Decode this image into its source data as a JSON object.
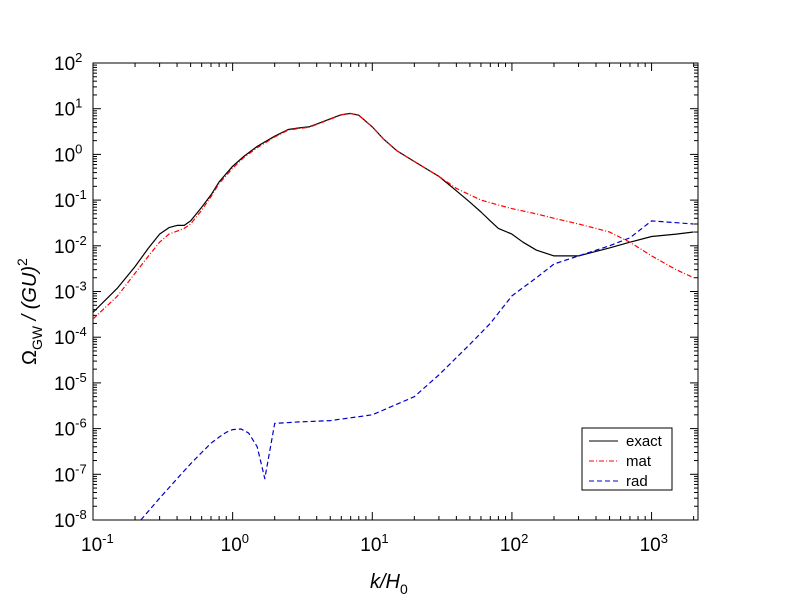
{
  "chart_data": {
    "type": "line",
    "xscale": "log",
    "yscale": "log",
    "xlim": [
      0.1,
      2150
    ],
    "ylim": [
      1e-08,
      100
    ],
    "grid": false,
    "legend_position": "bottom-right",
    "xlabel": {
      "main": "k/H",
      "sub": "0"
    },
    "ylabel": {
      "main": "Ω",
      "sub": "GW",
      "rest": " / (GU)",
      "sup": "2"
    },
    "x_ticks": [
      {
        "base": "10",
        "exp": "-1",
        "value": 0.1
      },
      {
        "base": "10",
        "exp": "0",
        "value": 1
      },
      {
        "base": "10",
        "exp": "1",
        "value": 10
      },
      {
        "base": "10",
        "exp": "2",
        "value": 100
      },
      {
        "base": "10",
        "exp": "3",
        "value": 1000
      }
    ],
    "y_ticks": [
      {
        "base": "10",
        "exp": "-8",
        "value": 1e-08
      },
      {
        "base": "10",
        "exp": "-7",
        "value": 1e-07
      },
      {
        "base": "10",
        "exp": "-6",
        "value": 1e-06
      },
      {
        "base": "10",
        "exp": "-5",
        "value": 1e-05
      },
      {
        "base": "10",
        "exp": "-4",
        "value": 0.0001
      },
      {
        "base": "10",
        "exp": "-3",
        "value": 0.001
      },
      {
        "base": "10",
        "exp": "-2",
        "value": 0.01
      },
      {
        "base": "10",
        "exp": "-1",
        "value": 0.1
      },
      {
        "base": "10",
        "exp": "0",
        "value": 1
      },
      {
        "base": "10",
        "exp": "1",
        "value": 10
      },
      {
        "base": "10",
        "exp": "2",
        "value": 100
      }
    ],
    "series": [
      {
        "name": "exact",
        "color": "#000000",
        "style": "solid",
        "x": [
          0.1,
          0.15,
          0.2,
          0.25,
          0.3,
          0.35,
          0.4,
          0.45,
          0.5,
          0.6,
          0.7,
          0.8,
          1.0,
          1.2,
          1.5,
          2.0,
          2.5,
          3.0,
          3.5,
          4.0,
          5.0,
          6.0,
          7.0,
          8.0,
          10,
          12,
          15,
          20,
          30,
          40,
          50,
          60,
          70,
          80,
          100,
          120,
          150,
          200,
          300,
          500,
          700,
          1000,
          1500,
          2000
        ],
        "y": [
          0.00035,
          0.0012,
          0.0035,
          0.009,
          0.018,
          0.025,
          0.028,
          0.028,
          0.035,
          0.07,
          0.13,
          0.25,
          0.55,
          0.9,
          1.5,
          2.5,
          3.5,
          3.8,
          4.0,
          4.6,
          6.0,
          7.4,
          7.9,
          7.2,
          4.0,
          2.2,
          1.2,
          0.7,
          0.33,
          0.16,
          0.09,
          0.055,
          0.035,
          0.024,
          0.018,
          0.012,
          0.008,
          0.006,
          0.006,
          0.009,
          0.012,
          0.016,
          0.018,
          0.02
        ]
      },
      {
        "name": "mat",
        "color": "#ff0000",
        "style": "dash-dot",
        "x": [
          0.1,
          0.15,
          0.2,
          0.25,
          0.3,
          0.35,
          0.4,
          0.45,
          0.5,
          0.6,
          0.7,
          0.8,
          1.0,
          1.2,
          1.5,
          2.0,
          2.5,
          3.0,
          3.5,
          4.0,
          5.0,
          6.0,
          7.0,
          8.0,
          10,
          12,
          15,
          20,
          30,
          40,
          50,
          60,
          80,
          100,
          150,
          200,
          300,
          400,
          500,
          700,
          1000,
          1500,
          2000
        ],
        "y": [
          0.00025,
          0.0008,
          0.0025,
          0.006,
          0.012,
          0.018,
          0.021,
          0.024,
          0.03,
          0.06,
          0.12,
          0.23,
          0.5,
          0.85,
          1.4,
          2.4,
          3.4,
          3.7,
          3.9,
          4.5,
          5.9,
          7.3,
          7.8,
          7.1,
          4.0,
          2.2,
          1.2,
          0.7,
          0.33,
          0.18,
          0.13,
          0.1,
          0.078,
          0.065,
          0.05,
          0.04,
          0.03,
          0.024,
          0.02,
          0.012,
          0.006,
          0.003,
          0.002
        ]
      },
      {
        "name": "rad",
        "color": "#0000cc",
        "style": "dashed",
        "x": [
          0.22,
          0.3,
          0.4,
          0.5,
          0.6,
          0.7,
          0.8,
          0.9,
          1.0,
          1.15,
          1.3,
          1.5,
          1.7,
          2.0,
          3.0,
          5.0,
          10,
          20,
          30,
          50,
          70,
          100,
          150,
          200,
          300,
          500,
          700,
          1000,
          1500,
          2000
        ],
        "y": [
          1e-08,
          3e-08,
          8e-08,
          1.7e-07,
          3e-07,
          4.8e-07,
          6.5e-07,
          8.3e-07,
          9.5e-07,
          9.8e-07,
          8e-07,
          4e-07,
          8e-08,
          1.3e-06,
          1.4e-06,
          1.5e-06,
          2e-06,
          5e-06,
          1.5e-05,
          7e-05,
          0.0002,
          0.0008,
          0.002,
          0.004,
          0.006,
          0.01,
          0.015,
          0.035,
          0.032,
          0.03
        ]
      }
    ]
  }
}
